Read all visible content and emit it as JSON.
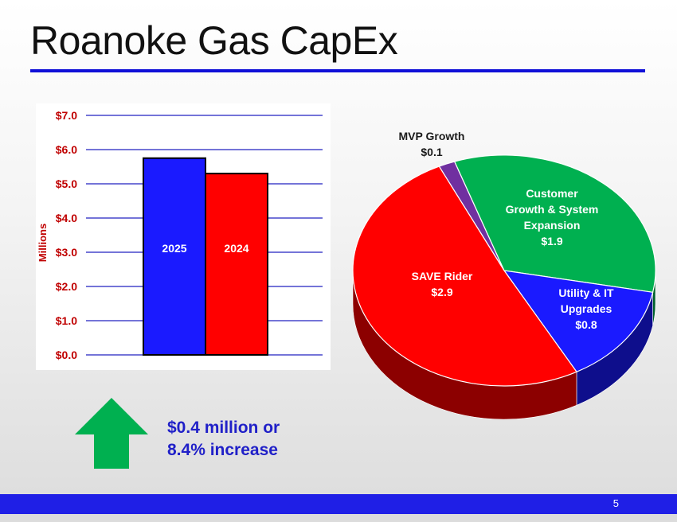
{
  "slide": {
    "title": "Roanoke Gas CapEx",
    "page_number": "5",
    "increase_line1": "$0.4 million or",
    "increase_line2": "8.4% increase",
    "colors": {
      "accent": "#1f1fe6",
      "arrow": "#00b050",
      "axis_text": "#c00000"
    }
  },
  "chart_data": [
    {
      "type": "bar",
      "ylabel": "Millions",
      "ylim": [
        0,
        7
      ],
      "yticks": [
        "$0.0",
        "$1.0",
        "$2.0",
        "$3.0",
        "$4.0",
        "$5.0",
        "$6.0",
        "$7.0"
      ],
      "grid": true,
      "categories": [
        "2025",
        "2024"
      ],
      "values": [
        5.75,
        5.3
      ],
      "colors": [
        "#1a1aff",
        "#ff0000"
      ]
    },
    {
      "type": "pie",
      "slices": [
        {
          "label_lines": [
            "MVP Growth",
            "$0.1"
          ],
          "value": 0.1,
          "color": "#7030a0"
        },
        {
          "label_lines": [
            "Customer",
            "Growth & System",
            "Expansion",
            "$1.9"
          ],
          "value": 1.9,
          "color": "#00b050"
        },
        {
          "label_lines": [
            "Utility & IT",
            "Upgrades",
            "$0.8"
          ],
          "value": 0.8,
          "color": "#1a1aff"
        },
        {
          "label_lines": [
            "SAVE Rider",
            "$2.9"
          ],
          "value": 2.9,
          "color": "#ff0000"
        }
      ]
    }
  ]
}
